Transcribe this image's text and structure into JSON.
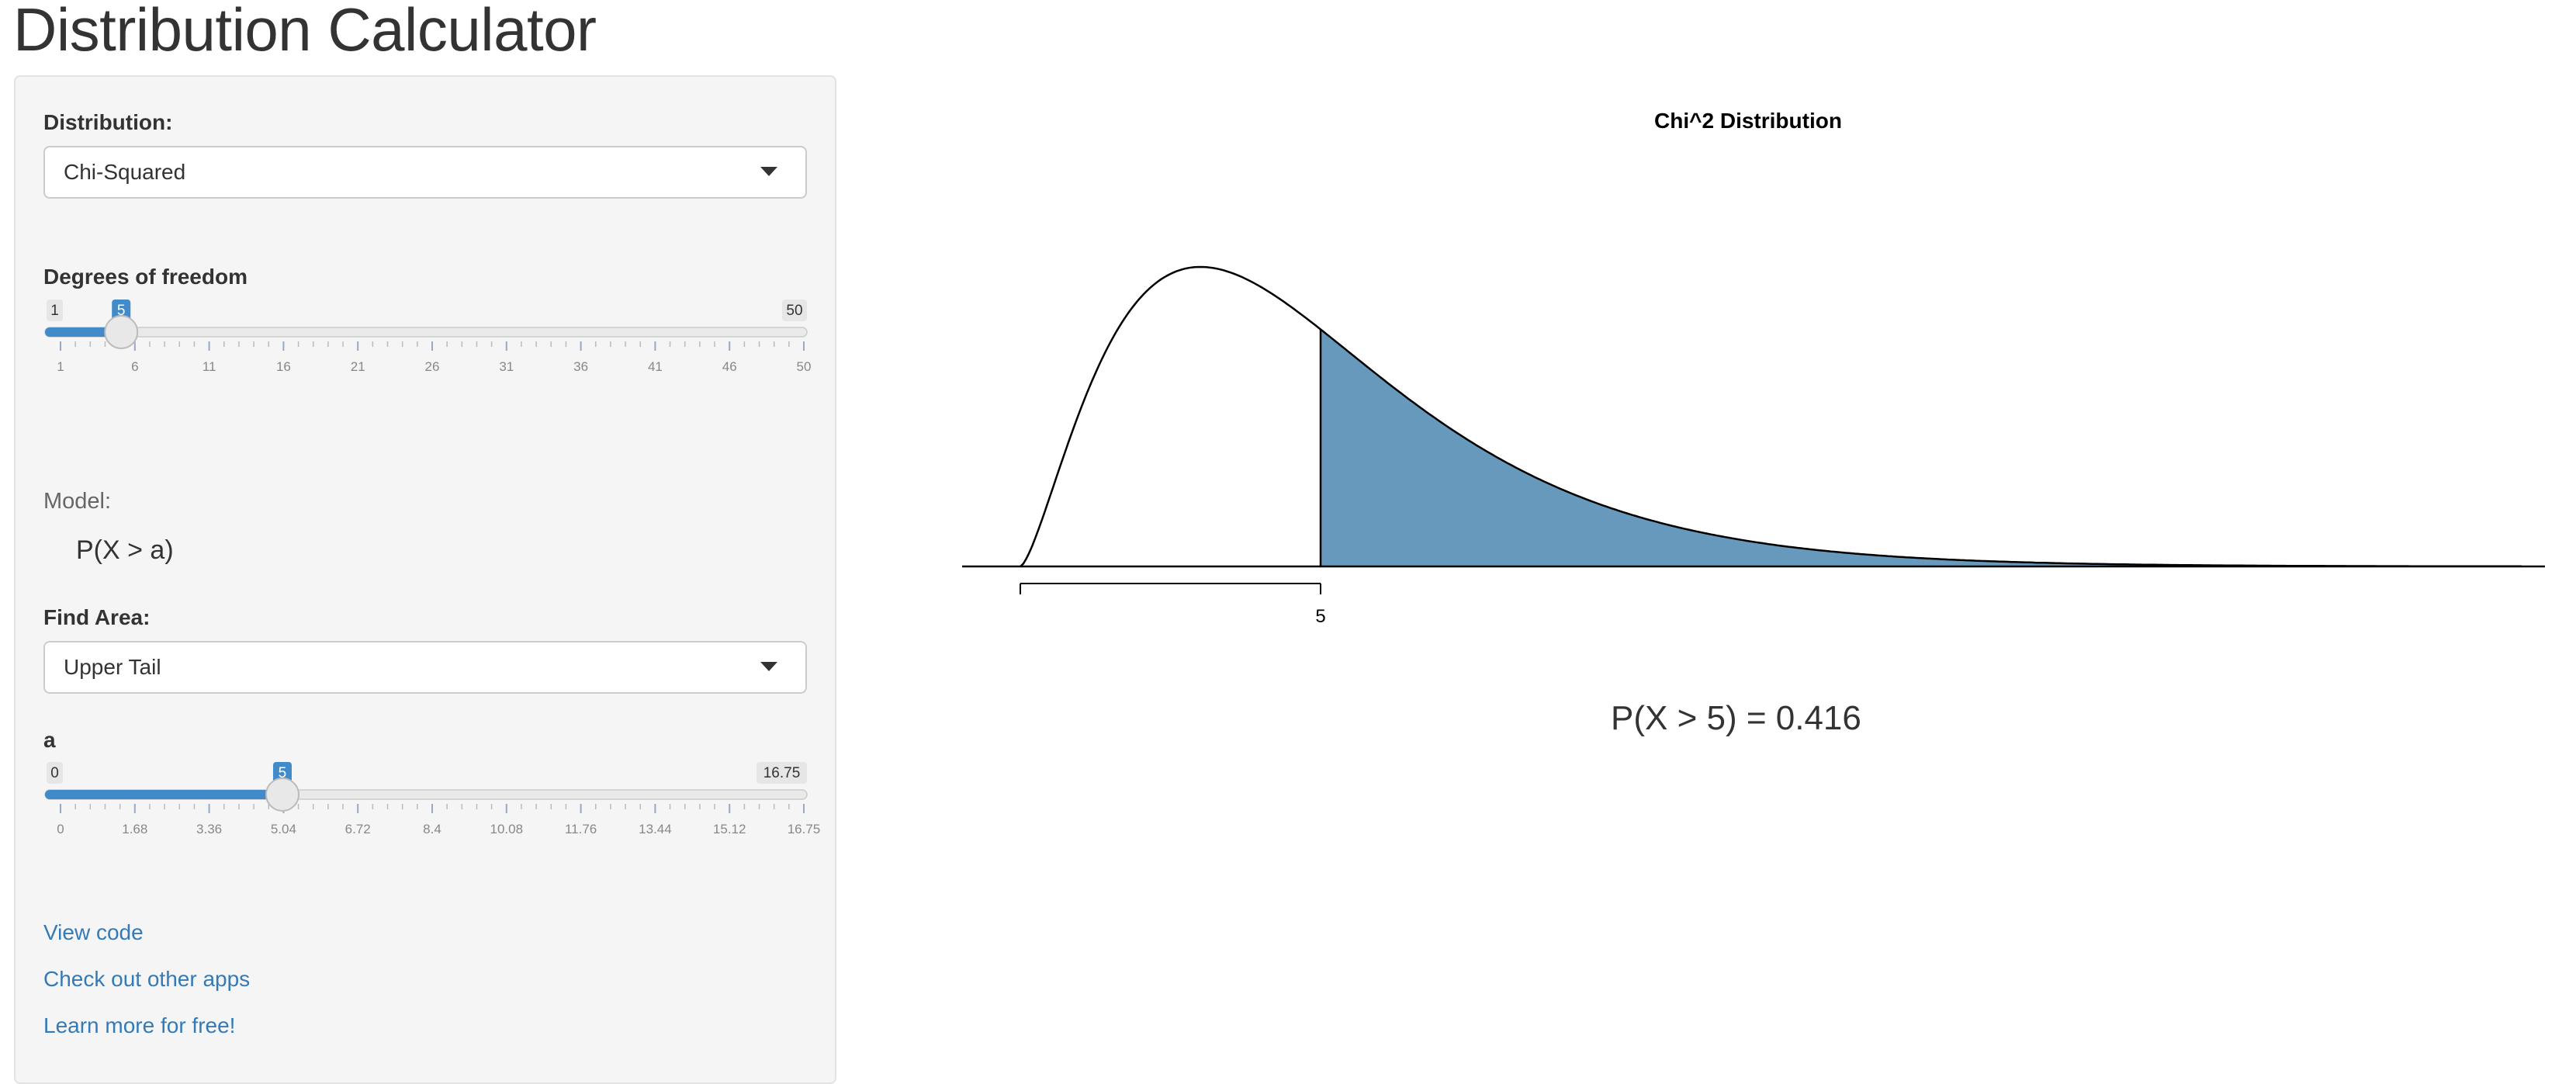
{
  "app": {
    "title": "Distribution Calculator"
  },
  "sidebar": {
    "distribution_label": "Distribution:",
    "distribution_value": "Chi-Squared",
    "df_slider": {
      "label": "Degrees of freedom",
      "min": 1,
      "max": 50,
      "value": 5,
      "min_label": "1",
      "max_label": "50",
      "value_label": "5",
      "tick_labels": [
        "1",
        "6",
        "11",
        "16",
        "21",
        "26",
        "31",
        "36",
        "41",
        "46",
        "50"
      ]
    },
    "model_label": "Model:",
    "model_text": "P(X > a)",
    "find_area_label": "Find Area:",
    "find_area_value": "Upper Tail",
    "a_slider": {
      "label": "a",
      "min": 0,
      "max": 16.75,
      "value": 5,
      "min_label": "0",
      "max_label": "16.75",
      "value_label": "5",
      "tick_labels": [
        "0",
        "1.68",
        "3.36",
        "5.04",
        "6.72",
        "8.4",
        "10.08",
        "11.76",
        "13.44",
        "15.12",
        "16.75"
      ]
    },
    "links": [
      "View code",
      "Check out other apps",
      "Learn more for free!"
    ]
  },
  "colors": {
    "accent": "#428bca",
    "link": "#337ab7",
    "shade": "#6699bb",
    "panel_bg": "#f5f5f5"
  },
  "chart_data": {
    "type": "area",
    "title": "Chi^2 Distribution",
    "distribution": "chi-squared",
    "df": 5,
    "xlim": [
      0,
      25
    ],
    "shaded_region": "upper tail",
    "cutoff": 5,
    "x_tick_labels": [
      "5"
    ],
    "xlabel": "",
    "ylabel": ""
  },
  "result": {
    "text": "P(X > 5) = 0.416"
  }
}
